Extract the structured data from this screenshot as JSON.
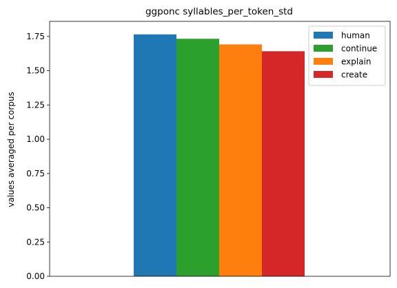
{
  "chart_data": {
    "type": "bar",
    "title": "ggponc syllables_per_token_std",
    "xlabel": "",
    "ylabel": "values averaged per corpus",
    "ylim": [
      0,
      1.86
    ],
    "yticks": [
      "0.00",
      "0.25",
      "0.50",
      "0.75",
      "1.00",
      "1.25",
      "1.50",
      "1.75"
    ],
    "grid": false,
    "legend_position": "top-right",
    "series": [
      {
        "name": "human",
        "value": 1.765,
        "color": "#1f77b4"
      },
      {
        "name": "continue",
        "value": 1.733,
        "color": "#2ca02c"
      },
      {
        "name": "explain",
        "value": 1.692,
        "color": "#ff7f0e"
      },
      {
        "name": "create",
        "value": 1.642,
        "color": "#d62728"
      }
    ]
  }
}
